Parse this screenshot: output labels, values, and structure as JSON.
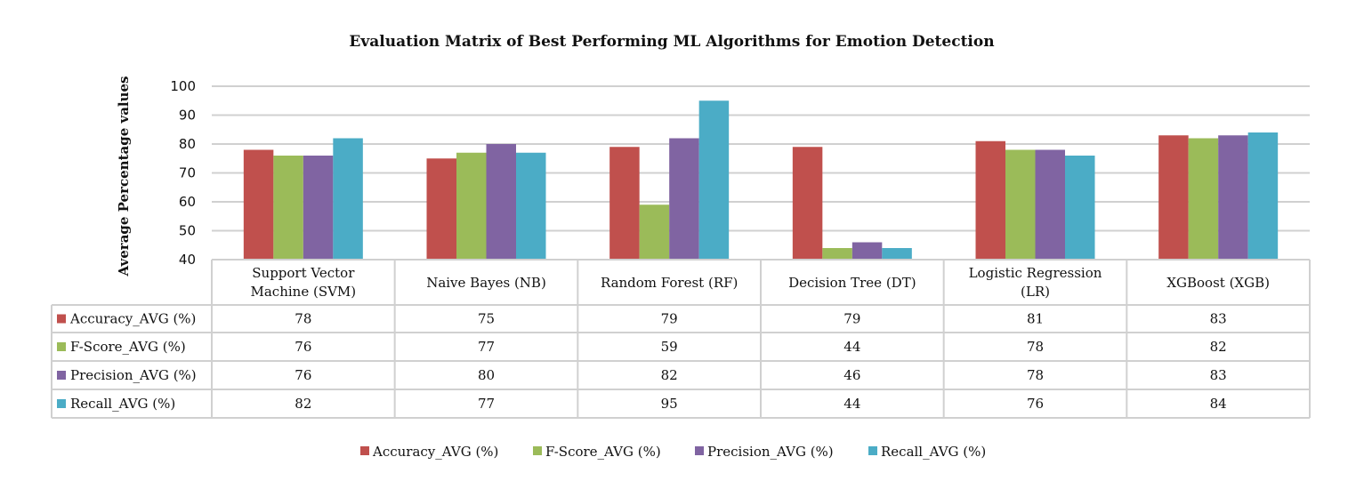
{
  "chart_data": {
    "type": "bar",
    "title": "Evaluation Matrix of Best Performing ML Algorithms for Emotion Detection",
    "xlabel": "",
    "ylabel": "Average Percentage values",
    "ylim": [
      40,
      100
    ],
    "yticks": [
      40,
      50,
      60,
      70,
      80,
      90,
      100
    ],
    "grid": true,
    "legend_position": "bottom",
    "data_table": true,
    "categories": [
      [
        "Support Vector",
        "Machine (SVM)"
      ],
      [
        "Naive Bayes (NB)"
      ],
      [
        "Random Forest (RF)"
      ],
      [
        "Decision Tree (DT)"
      ],
      [
        "Logistic Regression",
        "(LR)"
      ],
      [
        "XGBoost (XGB)"
      ]
    ],
    "series": [
      {
        "name": "Accuracy_AVG (%)",
        "color": "#c0504d",
        "values": [
          78,
          75,
          79,
          79,
          81,
          83
        ]
      },
      {
        "name": "F-Score_AVG (%)",
        "color": "#9bbb59",
        "values": [
          76,
          77,
          59,
          44,
          78,
          82
        ]
      },
      {
        "name": "Precision_AVG (%)",
        "color": "#8064a2",
        "values": [
          76,
          80,
          82,
          46,
          78,
          83
        ]
      },
      {
        "name": "Recall_AVG (%)",
        "color": "#4bacc6",
        "values": [
          82,
          77,
          95,
          44,
          76,
          84
        ]
      }
    ]
  }
}
